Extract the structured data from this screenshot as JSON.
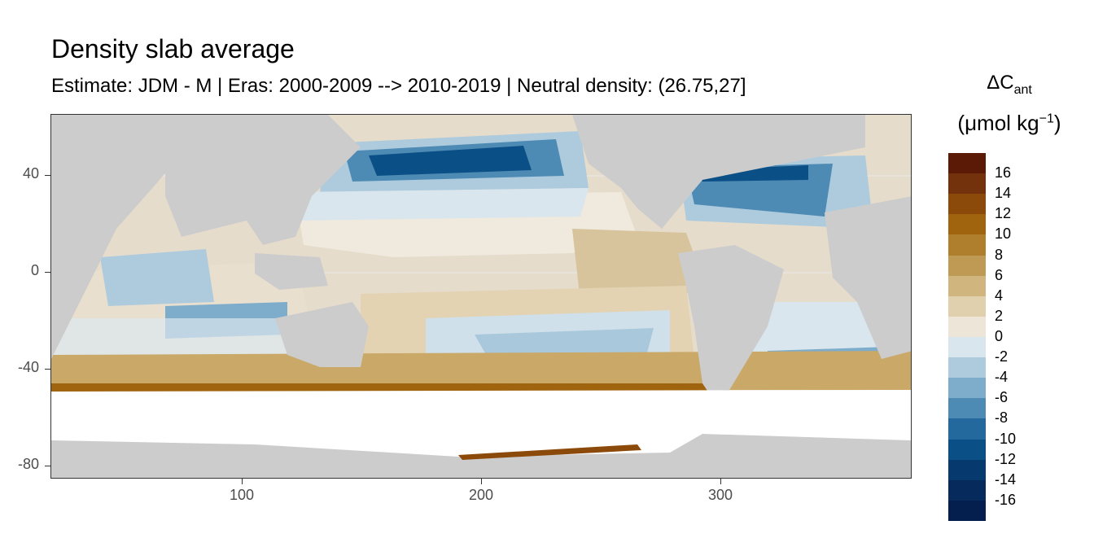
{
  "title": "Density slab average",
  "subtitle": "Estimate: JDM - M | Eras: 2000-2009 --> 2010-2019 | Neutral density: (26.75,27]",
  "legend": {
    "title_main": "ΔC",
    "title_sub": "ant",
    "unit_prefix": "(μmol kg",
    "unit_exp": "−1",
    "unit_suffix": ")",
    "labels": [
      "16",
      "14",
      "12",
      "10",
      "8",
      "6",
      "4",
      "2",
      "0",
      "-2",
      "-4",
      "-6",
      "-8",
      "-10",
      "-12",
      "-14",
      "-16"
    ],
    "colors": [
      "#5a1a05",
      "#74320c",
      "#8c4a0a",
      "#a0640f",
      "#b07f2e",
      "#bf9a55",
      "#d0b67e",
      "#e0d0ae",
      "#ede6d8",
      "#d9e6ee",
      "#aecbde",
      "#7eaccb",
      "#4d8ab4",
      "#24699e",
      "#0b4f87",
      "#06396e",
      "#052a5b",
      "#041e4d"
    ]
  },
  "axes": {
    "y_ticks": [
      "40",
      "0",
      "-40",
      "-80"
    ],
    "x_ticks": [
      "100",
      "200",
      "300"
    ]
  },
  "map": {
    "land_color": "#cccccc",
    "no_data_color": "#ffffff",
    "lon_range": [
      20,
      380
    ],
    "lat_range": [
      -85,
      65
    ]
  }
}
